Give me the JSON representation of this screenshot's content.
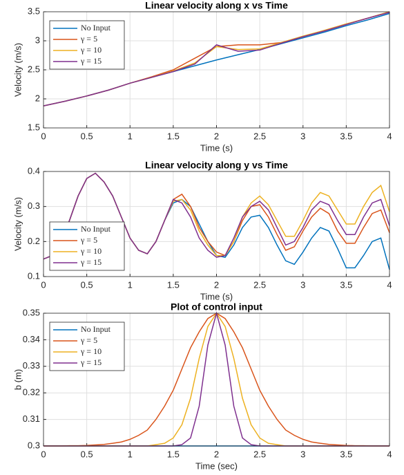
{
  "chart_data": [
    {
      "type": "line",
      "title": "Linear velocity along x vs Time",
      "xlabel": "Time (s)",
      "ylabel": "Velocity (m/s)",
      "xlim": [
        0,
        4
      ],
      "ylim": [
        1.5,
        3.5
      ],
      "xticks": [
        0,
        0.5,
        1,
        1.5,
        2,
        2.5,
        3,
        3.5,
        4
      ],
      "yticks": [
        1.5,
        2,
        2.5,
        3,
        3.5
      ],
      "grid": true,
      "legend": "upper-left",
      "x": [
        0,
        0.25,
        0.5,
        0.75,
        1,
        1.25,
        1.5,
        1.75,
        2,
        2.25,
        2.5,
        2.75,
        3,
        3.25,
        3.5,
        3.75,
        4
      ],
      "series": [
        {
          "name": "No Input",
          "color": "#0072bd",
          "values": [
            1.88,
            1.96,
            2.05,
            2.15,
            2.27,
            2.37,
            2.47,
            2.57,
            2.67,
            2.76,
            2.85,
            2.95,
            3.05,
            3.15,
            3.26,
            3.36,
            3.47
          ]
        },
        {
          "name": "γ = 5",
          "color": "#d95319",
          "values": [
            1.88,
            1.96,
            2.05,
            2.15,
            2.27,
            2.38,
            2.5,
            2.7,
            2.9,
            2.93,
            2.93,
            2.97,
            3.07,
            3.18,
            3.29,
            3.39,
            3.5
          ]
        },
        {
          "name": "γ = 10",
          "color": "#edb120",
          "values": [
            1.88,
            1.96,
            2.05,
            2.15,
            2.27,
            2.37,
            2.48,
            2.62,
            2.9,
            2.85,
            2.86,
            2.97,
            3.08,
            3.18,
            3.29,
            3.39,
            3.5
          ]
        },
        {
          "name": "γ = 15",
          "color": "#7e2f8e",
          "values": [
            1.88,
            1.96,
            2.05,
            2.15,
            2.27,
            2.37,
            2.47,
            2.6,
            2.93,
            2.82,
            2.84,
            2.96,
            3.07,
            3.17,
            3.28,
            3.39,
            3.49
          ]
        }
      ]
    },
    {
      "type": "line",
      "title": "Linear velocity along y vs Time",
      "xlabel": "Time (s)",
      "ylabel": "Velocity (m/s)",
      "xlim": [
        0,
        4
      ],
      "ylim": [
        0.1,
        0.4
      ],
      "xticks": [
        0,
        0.5,
        1,
        1.5,
        2,
        2.5,
        3,
        3.5,
        4
      ],
      "yticks": [
        0.1,
        0.2,
        0.3,
        0.4
      ],
      "grid": true,
      "legend": "lower-left",
      "x": [
        0,
        0.1,
        0.2,
        0.3,
        0.4,
        0.5,
        0.6,
        0.7,
        0.8,
        0.9,
        1,
        1.1,
        1.2,
        1.3,
        1.4,
        1.5,
        1.6,
        1.7,
        1.8,
        1.9,
        2,
        2.1,
        2.2,
        2.3,
        2.4,
        2.5,
        2.6,
        2.7,
        2.8,
        2.9,
        3,
        3.1,
        3.2,
        3.3,
        3.4,
        3.5,
        3.6,
        3.7,
        3.8,
        3.9,
        4
      ],
      "series": [
        {
          "name": "No Input",
          "color": "#0072bd",
          "values": [
            0.15,
            0.16,
            0.2,
            0.26,
            0.33,
            0.38,
            0.395,
            0.37,
            0.33,
            0.27,
            0.21,
            0.175,
            0.165,
            0.2,
            0.26,
            0.31,
            0.32,
            0.3,
            0.25,
            0.2,
            0.16,
            0.155,
            0.19,
            0.24,
            0.27,
            0.275,
            0.24,
            0.19,
            0.145,
            0.135,
            0.17,
            0.21,
            0.24,
            0.23,
            0.18,
            0.125,
            0.125,
            0.16,
            0.2,
            0.21,
            0.12
          ]
        },
        {
          "name": "γ = 5",
          "color": "#d95319",
          "values": [
            0.15,
            0.16,
            0.2,
            0.26,
            0.33,
            0.38,
            0.395,
            0.37,
            0.33,
            0.27,
            0.21,
            0.175,
            0.165,
            0.2,
            0.26,
            0.32,
            0.335,
            0.3,
            0.24,
            0.2,
            0.17,
            0.16,
            0.2,
            0.26,
            0.3,
            0.305,
            0.27,
            0.22,
            0.175,
            0.185,
            0.23,
            0.27,
            0.295,
            0.28,
            0.23,
            0.195,
            0.195,
            0.24,
            0.28,
            0.29,
            0.225
          ]
        },
        {
          "name": "γ = 10",
          "color": "#edb120",
          "values": [
            0.15,
            0.16,
            0.2,
            0.26,
            0.33,
            0.38,
            0.395,
            0.37,
            0.33,
            0.27,
            0.21,
            0.175,
            0.165,
            0.2,
            0.26,
            0.315,
            0.32,
            0.29,
            0.23,
            0.19,
            0.16,
            0.16,
            0.2,
            0.27,
            0.31,
            0.33,
            0.305,
            0.26,
            0.215,
            0.215,
            0.26,
            0.31,
            0.34,
            0.33,
            0.29,
            0.25,
            0.25,
            0.3,
            0.34,
            0.36,
            0.285
          ]
        },
        {
          "name": "γ = 15",
          "color": "#7e2f8e",
          "values": [
            0.15,
            0.16,
            0.2,
            0.26,
            0.33,
            0.38,
            0.395,
            0.37,
            0.33,
            0.27,
            0.21,
            0.175,
            0.165,
            0.2,
            0.26,
            0.32,
            0.31,
            0.27,
            0.21,
            0.175,
            0.155,
            0.16,
            0.21,
            0.27,
            0.3,
            0.315,
            0.29,
            0.24,
            0.19,
            0.2,
            0.24,
            0.29,
            0.315,
            0.305,
            0.26,
            0.22,
            0.22,
            0.27,
            0.31,
            0.32,
            0.245
          ]
        }
      ]
    },
    {
      "type": "line",
      "title": "Plot of control input",
      "xlabel": "Time (sec)",
      "ylabel": "b (m)",
      "xlim": [
        0,
        4
      ],
      "ylim": [
        0.3,
        0.35
      ],
      "xticks": [
        0,
        0.5,
        1,
        1.5,
        2,
        2.5,
        3,
        3.5,
        4
      ],
      "yticks": [
        0.3,
        0.31,
        0.32,
        0.33,
        0.34,
        0.35
      ],
      "grid": true,
      "legend": "upper-left",
      "x": [
        0,
        0.1,
        0.2,
        0.3,
        0.4,
        0.5,
        0.6,
        0.7,
        0.8,
        0.9,
        1,
        1.1,
        1.2,
        1.3,
        1.4,
        1.5,
        1.6,
        1.7,
        1.8,
        1.9,
        2,
        2.1,
        2.2,
        2.3,
        2.4,
        2.5,
        2.6,
        2.7,
        2.8,
        2.9,
        3,
        3.1,
        3.2,
        3.3,
        3.4,
        3.5,
        3.6,
        3.7,
        3.8,
        3.9,
        4
      ],
      "series": [
        {
          "name": "No Input",
          "color": "#0072bd",
          "values": [
            0.3,
            0.3,
            0.3,
            0.3,
            0.3,
            0.3,
            0.3,
            0.3,
            0.3,
            0.3,
            0.3,
            0.3,
            0.3,
            0.3,
            0.3,
            0.3,
            0.3,
            0.3,
            0.3,
            0.3,
            0.3,
            0.3,
            0.3,
            0.3,
            0.3,
            0.3,
            0.3,
            0.3,
            0.3,
            0.3,
            0.3,
            0.3,
            0.3,
            0.3,
            0.3,
            0.3,
            0.3,
            0.3,
            0.3,
            0.3,
            0.3
          ]
        },
        {
          "name": "γ = 5",
          "color": "#d95319",
          "values": [
            0.3,
            0.3,
            0.3,
            0.3001,
            0.3001,
            0.3002,
            0.3004,
            0.3006,
            0.301,
            0.3015,
            0.3025,
            0.304,
            0.306,
            0.31,
            0.315,
            0.321,
            0.329,
            0.337,
            0.343,
            0.348,
            0.35,
            0.348,
            0.343,
            0.337,
            0.329,
            0.321,
            0.315,
            0.31,
            0.306,
            0.304,
            0.3025,
            0.3015,
            0.301,
            0.3006,
            0.3004,
            0.3002,
            0.3001,
            0.3001,
            0.3,
            0.3,
            0.3
          ]
        },
        {
          "name": "γ = 10",
          "color": "#edb120",
          "values": [
            0.3,
            0.3,
            0.3,
            0.3,
            0.3,
            0.3,
            0.3,
            0.3,
            0.3,
            0.3,
            0.3,
            0.3,
            0.3,
            0.3005,
            0.301,
            0.303,
            0.308,
            0.318,
            0.333,
            0.345,
            0.35,
            0.345,
            0.333,
            0.318,
            0.308,
            0.303,
            0.301,
            0.3005,
            0.3,
            0.3,
            0.3,
            0.3,
            0.3,
            0.3,
            0.3,
            0.3,
            0.3,
            0.3,
            0.3,
            0.3,
            0.3
          ]
        },
        {
          "name": "γ = 15",
          "color": "#7e2f8e",
          "values": [
            0.3,
            0.3,
            0.3,
            0.3,
            0.3,
            0.3,
            0.3,
            0.3,
            0.3,
            0.3,
            0.3,
            0.3,
            0.3,
            0.3,
            0.3,
            0.3,
            0.3005,
            0.303,
            0.315,
            0.338,
            0.35,
            0.338,
            0.315,
            0.303,
            0.3005,
            0.3,
            0.3,
            0.3,
            0.3,
            0.3,
            0.3,
            0.3,
            0.3,
            0.3,
            0.3,
            0.3,
            0.3,
            0.3,
            0.3,
            0.3,
            0.3
          ]
        }
      ]
    }
  ]
}
